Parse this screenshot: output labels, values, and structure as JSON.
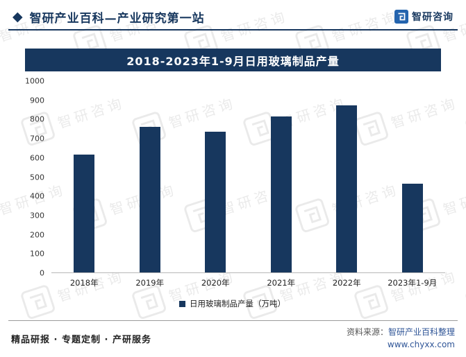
{
  "header": {
    "diamond_icon": "◆",
    "title": "智研产业百科—产业研究第一站",
    "brand_name": "智研咨询"
  },
  "chart_data": {
    "type": "bar",
    "title": "2018-2023年1-9月日用玻璃制品产量",
    "categories": [
      "2018年",
      "2019年",
      "2020年",
      "2021年",
      "2022年",
      "2023年1-9月"
    ],
    "values": [
      615,
      760,
      735,
      815,
      875,
      465
    ],
    "xlabel": "",
    "ylabel": "",
    "ylim": [
      0,
      1000
    ],
    "ytick_step": 100,
    "grid": false,
    "bar_color": "#17375E",
    "legend_position": "bottom",
    "legend": [
      {
        "label": "日用玻璃制品产量（万吨）",
        "color": "#17375E"
      }
    ]
  },
  "watermark": {
    "text": "智研咨询"
  },
  "footer": {
    "services_text": "精品研报 · 专题定制 · 产研服务",
    "source_label": "资料来源：",
    "source_name": "智研产业百科整理",
    "source_site": "www.chyxx.com"
  },
  "colors": {
    "accent_navy": "#17375E",
    "brand_blue": "#2464AE",
    "link_blue": "#2F5597",
    "watermark_gray": "#DADADA"
  }
}
